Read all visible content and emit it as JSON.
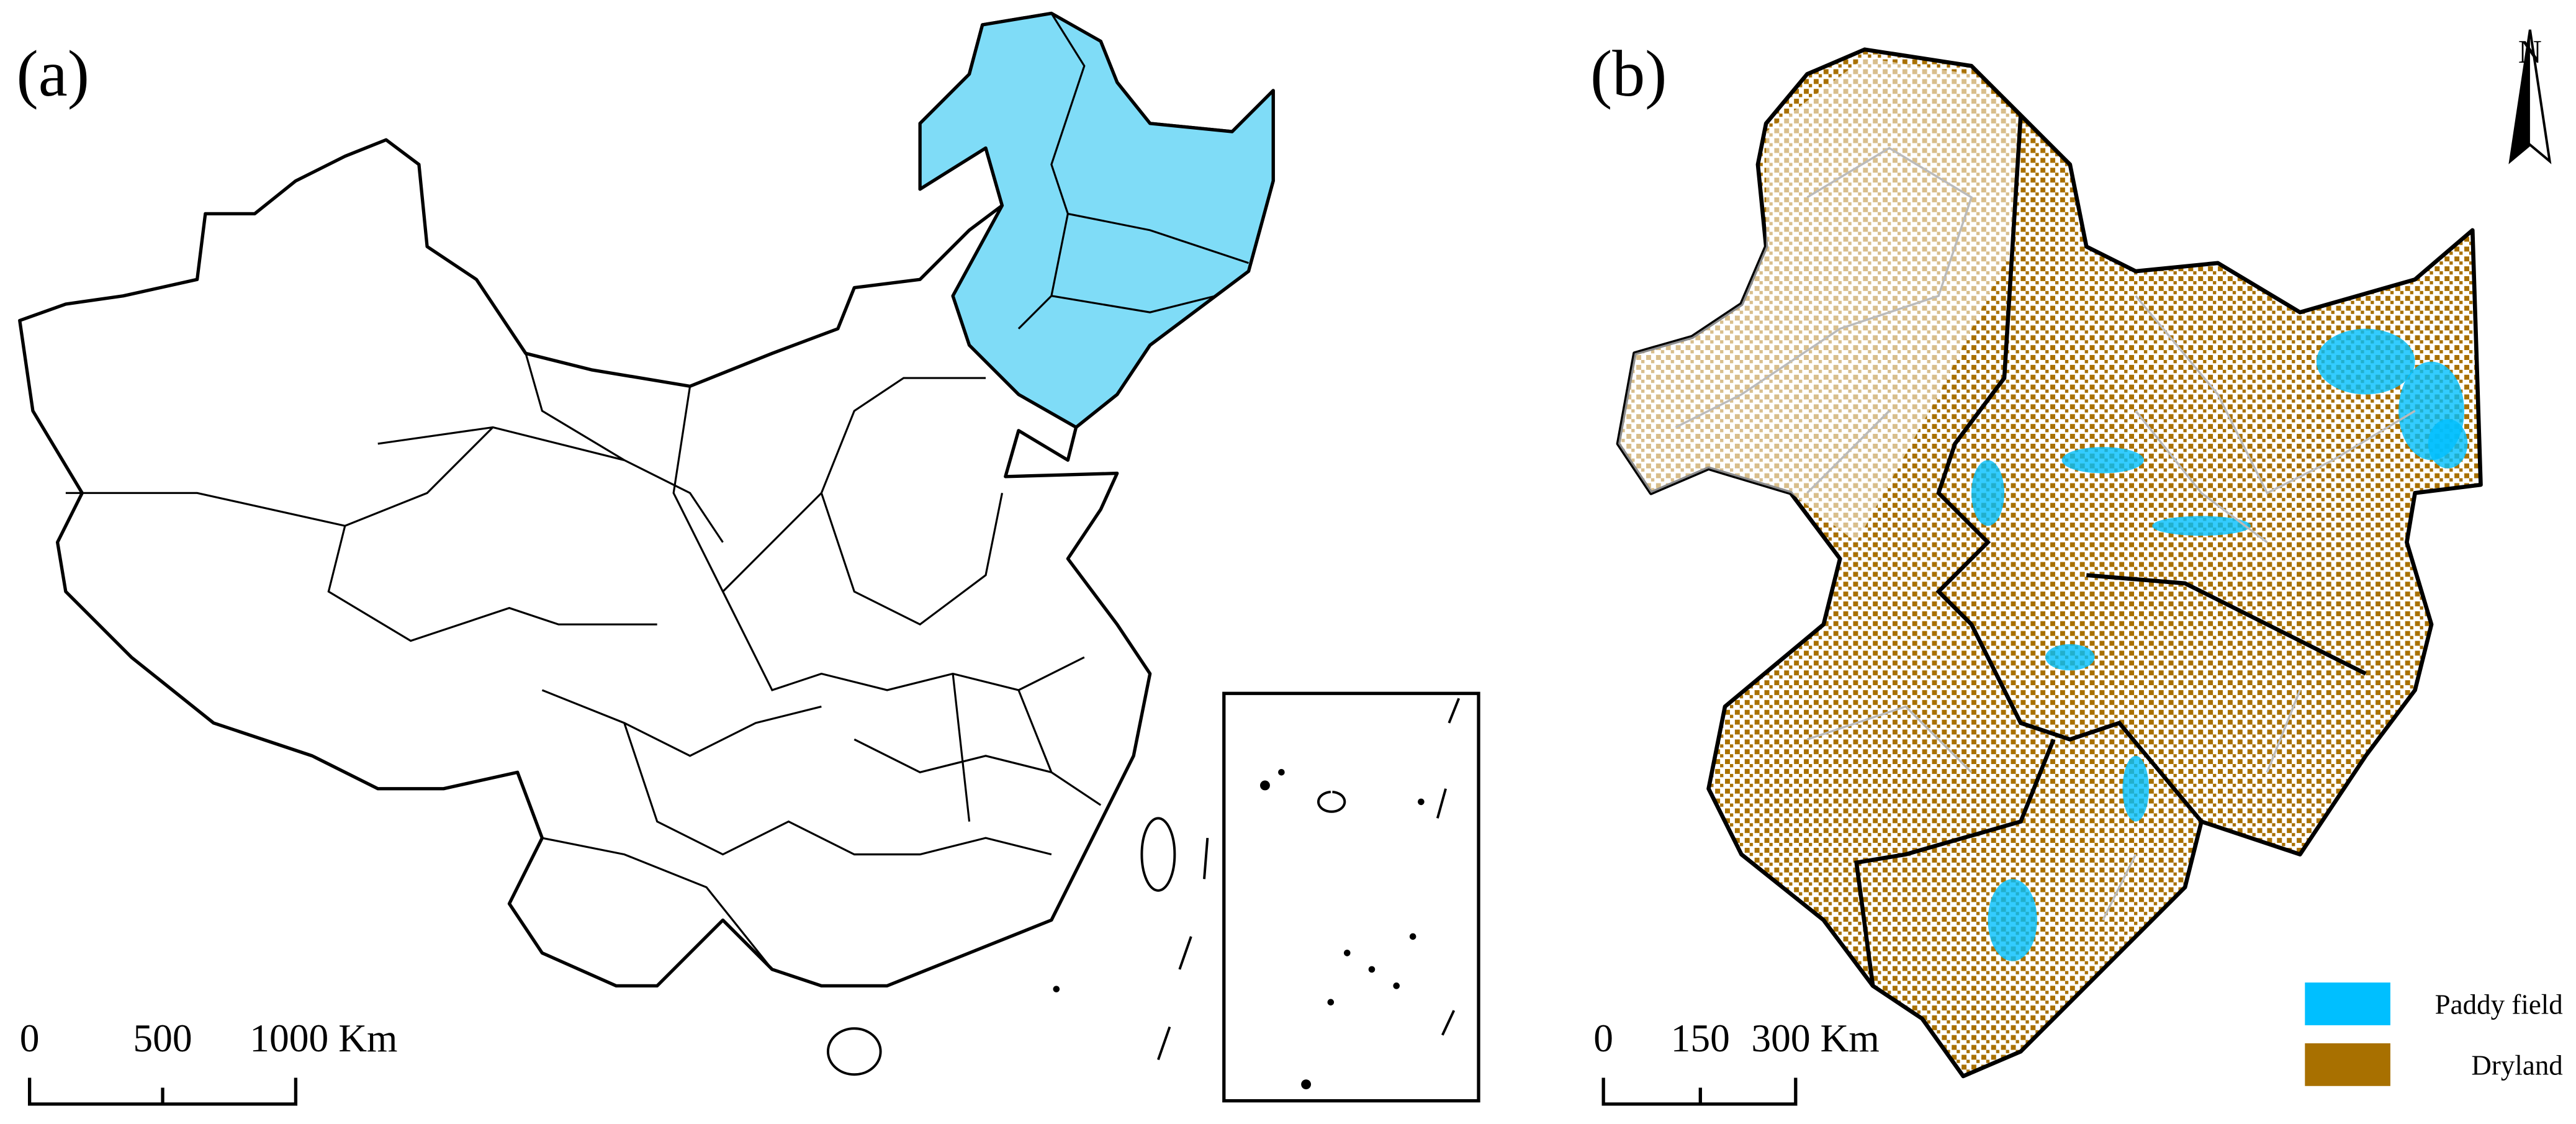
{
  "panels": [
    {
      "label": "(a)",
      "scale_bar": [
        "0",
        "500",
        "1000 Km"
      ],
      "highlight_color": "#7fdcf7"
    },
    {
      "label": "(b)",
      "scale_bar": [
        "0",
        "150",
        "300 Km"
      ],
      "north_label": "N",
      "legend": [
        {
          "label": "Paddy field",
          "color": "#00bfff"
        },
        {
          "label": "Dryland",
          "color": "#a87000"
        }
      ]
    }
  ]
}
